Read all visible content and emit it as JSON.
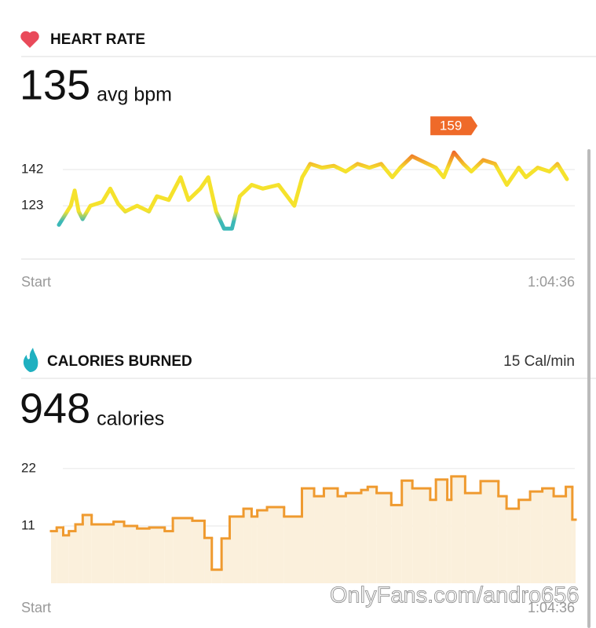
{
  "chart_data": [
    {
      "type": "line",
      "title": "HEART RATE",
      "summary_value": 135,
      "summary_unit": "avg bpm",
      "peak_label": 159,
      "x": [
        0,
        1.5,
        2,
        2.5,
        3,
        4,
        5.5,
        6.5,
        7.5,
        8.4,
        9.9,
        11.4,
        12.4,
        13.9,
        15.4,
        16.4,
        17.9,
        18.9,
        19.9,
        20.9,
        21.9,
        22.9,
        24.4,
        25.8,
        27.8,
        29.8,
        30.8,
        31.8,
        33.3,
        34.8,
        36.3,
        37.8,
        39.3,
        40.8,
        42.2,
        43.2,
        44.7,
        46.2,
        47.7,
        48.7,
        50,
        51.2,
        52.2,
        53.7,
        55.2,
        56.7,
        58.2,
        59.1,
        60.6,
        62.1,
        63.1,
        64.3
      ],
      "values": [
        113,
        123,
        131,
        120,
        116,
        123,
        125,
        132,
        124,
        120,
        123,
        120,
        128,
        126,
        138,
        126,
        132,
        138,
        120,
        111,
        111,
        128,
        134,
        132,
        134,
        123,
        138,
        145,
        143,
        144,
        141,
        145,
        143,
        145,
        138,
        143,
        149,
        146,
        143,
        138,
        151,
        145,
        141,
        147,
        145,
        134,
        143,
        138,
        143,
        141,
        145,
        137
      ],
      "colors": [
        "#3bb8b8",
        "#f5e22c",
        "#ef6a29"
      ],
      "xlim": [
        0,
        64.6
      ],
      "xticks": [
        {
          "value": 0,
          "label": "Start"
        },
        {
          "value": 64.6,
          "label": "1:04:36"
        }
      ],
      "ylim": [
        95,
        161
      ],
      "yticks": [
        123,
        142
      ],
      "grid": true
    },
    {
      "type": "step",
      "title": "CALORIES BURNED",
      "rate_label": "15 Cal/min",
      "summary_value": 948,
      "summary_unit": "calories",
      "x": [
        0,
        0.7,
        1.5,
        2.2,
        3.0,
        3.9,
        5.0,
        7.7,
        9.0,
        10.6,
        12.1,
        14.0,
        15.0,
        17.4,
        18.9,
        19.8,
        21.0,
        22.0,
        23.7,
        24.7,
        25.4,
        26.6,
        28.7,
        30.9,
        32.4,
        33.6,
        35.3,
        36.3,
        38.2,
        39.0,
        40.1,
        41.9,
        43.2,
        44.5,
        46.7,
        47.4,
        48.8,
        49.3,
        51.0,
        52.9,
        55.1,
        56.1,
        57.6,
        59.0,
        60.5,
        61.9,
        63.4,
        64.2
      ],
      "values": [
        10,
        10.7,
        9.2,
        10,
        11.3,
        13.1,
        11.3,
        11.8,
        11,
        10.5,
        10.7,
        10,
        12.5,
        12,
        8.7,
        2.6,
        8.6,
        12.8,
        14.3,
        12.8,
        14,
        14.6,
        12.8,
        18.2,
        16.7,
        18.2,
        16.7,
        17.3,
        17.9,
        18.5,
        17.3,
        15,
        19.7,
        18.2,
        16,
        19.9,
        16,
        20.5,
        17.3,
        19.6,
        16.7,
        14.3,
        16,
        17.6,
        18.2,
        16.7,
        18.5,
        12.2
      ],
      "color": "#ef9a2f",
      "fill": "#fbf0dc",
      "xlim": [
        0,
        64.6
      ],
      "xticks": [
        {
          "value": 0,
          "label": "Start"
        },
        {
          "value": 64.6,
          "label": "1:04:36"
        }
      ],
      "ylim": [
        0,
        25
      ],
      "yticks": [
        11,
        22
      ],
      "grid": true
    }
  ],
  "watermark": "OnlyFans.com/andro656"
}
